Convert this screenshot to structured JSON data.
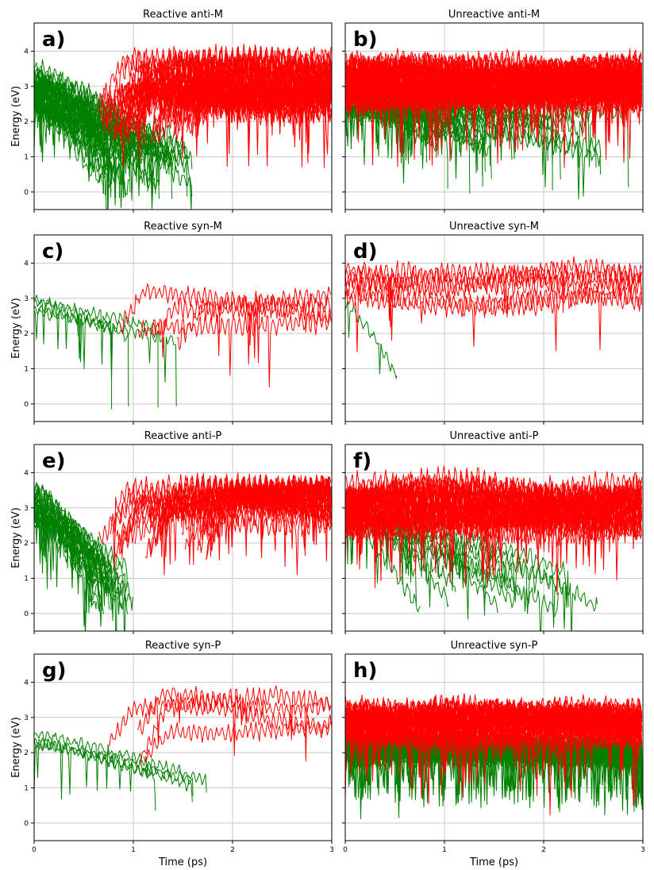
{
  "chart_data": [
    {
      "id": "a",
      "type": "line",
      "panel_label": "a)",
      "title": "Reactive anti-M",
      "ylabel": "Energy (eV)",
      "xlabel": "",
      "xlim": [
        0,
        3
      ],
      "ylim": [
        -0.5,
        4.8
      ],
      "xticks": [
        0,
        1,
        2,
        3
      ],
      "yticks": [
        0,
        1,
        2,
        3,
        4
      ],
      "series_groups": [
        {
          "name": "green",
          "color": "#008000",
          "n_traces": 40,
          "start": [
            2.3,
            3.6
          ],
          "t_switch": [
            0.6,
            1.6
          ],
          "dip_to": [
            -0.2,
            1.0
          ],
          "end": [
            0.0,
            1.6
          ],
          "noise": 0.35
        },
        {
          "name": "red",
          "color": "#ff0000",
          "n_traces": 40,
          "t_start": [
            0.65,
            1.6
          ],
          "level": [
            2.4,
            3.7
          ],
          "noise": 0.45,
          "t_end": 3.0
        }
      ]
    },
    {
      "id": "b",
      "type": "line",
      "panel_label": "b)",
      "title": "Unreactive anti-M",
      "ylabel": "",
      "xlabel": "",
      "xlim": [
        0,
        3
      ],
      "ylim": [
        -0.5,
        4.8
      ],
      "xticks": [
        0,
        1,
        2,
        3
      ],
      "yticks": [
        0,
        1,
        2,
        3,
        4
      ],
      "series_groups": [
        {
          "name": "green",
          "color": "#008000",
          "n_traces": 25,
          "start": [
            2.2,
            3.0
          ],
          "t_switch": [
            0.6,
            2.9
          ],
          "dip_to": [
            -0.2,
            1.2
          ],
          "end": [
            0.9,
            2.3
          ],
          "noise": 0.3
        },
        {
          "name": "red",
          "color": "#ff0000",
          "n_traces": 50,
          "t_start": [
            0.0,
            0.0
          ],
          "level": [
            2.6,
            3.6
          ],
          "noise": 0.4,
          "t_end": 3.0
        }
      ]
    },
    {
      "id": "c",
      "type": "line",
      "panel_label": "c)",
      "title": "Reactive syn-M",
      "ylabel": "Energy (eV)",
      "xlabel": "",
      "xlim": [
        0,
        3
      ],
      "ylim": [
        -0.5,
        4.8
      ],
      "xticks": [
        0,
        1,
        2,
        3
      ],
      "yticks": [
        0,
        1,
        2,
        3,
        4
      ],
      "series_groups": [
        {
          "name": "green",
          "color": "#008000",
          "n_traces": 4,
          "start": [
            2.5,
            3.0
          ],
          "t_switch": [
            0.6,
            2.1
          ],
          "dip_to": [
            -0.25,
            0.1
          ],
          "end": [
            1.5,
            2.2
          ],
          "noise": 0.2
        },
        {
          "name": "red",
          "color": "#ff0000",
          "n_traces": 4,
          "t_start": [
            0.6,
            2.1
          ],
          "level": [
            2.2,
            3.8
          ],
          "noise": 0.35,
          "t_end": 3.0
        }
      ]
    },
    {
      "id": "d",
      "type": "line",
      "panel_label": "d)",
      "title": "Unreactive syn-M",
      "ylabel": "",
      "xlabel": "",
      "xlim": [
        0,
        3
      ],
      "ylim": [
        -0.5,
        4.8
      ],
      "xticks": [
        0,
        1,
        2,
        3
      ],
      "yticks": [
        0,
        1,
        2,
        3,
        4
      ],
      "series_groups": [
        {
          "name": "green",
          "color": "#008000",
          "n_traces": 1,
          "start": [
            2.8,
            2.8
          ],
          "t_switch": [
            0.5,
            0.55
          ],
          "dip_to": [
            0.8,
            0.8
          ],
          "end": [
            0.8,
            0.8
          ],
          "noise": 0.2
        },
        {
          "name": "red",
          "color": "#ff0000",
          "n_traces": 6,
          "t_start": [
            0.0,
            0.0
          ],
          "level": [
            2.8,
            3.6
          ],
          "noise": 0.35,
          "t_end": 3.0
        }
      ]
    },
    {
      "id": "e",
      "type": "line",
      "panel_label": "e)",
      "title": "Reactive anti-P",
      "ylabel": "Energy (eV)",
      "xlabel": "",
      "xlim": [
        0,
        3
      ],
      "ylim": [
        -0.5,
        4.8
      ],
      "xticks": [
        0,
        1,
        2,
        3
      ],
      "yticks": [
        0,
        1,
        2,
        3,
        4
      ],
      "series_groups": [
        {
          "name": "green",
          "color": "#008000",
          "n_traces": 25,
          "start": [
            2.6,
            3.6
          ],
          "t_switch": [
            0.6,
            1.0
          ],
          "dip_to": [
            -0.15,
            0.8
          ],
          "end": [
            0.0,
            1.5
          ],
          "noise": 0.3
        },
        {
          "name": "red",
          "color": "#ff0000",
          "n_traces": 25,
          "t_start": [
            0.65,
            1.8
          ],
          "level": [
            2.7,
            3.6
          ],
          "noise": 0.4,
          "t_end": 3.0
        }
      ]
    },
    {
      "id": "f",
      "type": "line",
      "panel_label": "f)",
      "title": "Unreactive anti-P",
      "ylabel": "",
      "xlabel": "",
      "xlim": [
        0,
        3
      ],
      "ylim": [
        -0.5,
        4.8
      ],
      "xticks": [
        0,
        1,
        2,
        3
      ],
      "yticks": [
        0,
        1,
        2,
        3,
        4
      ],
      "series_groups": [
        {
          "name": "green",
          "color": "#008000",
          "n_traces": 12,
          "start": [
            2.6,
            3.5
          ],
          "t_switch": [
            0.6,
            2.6
          ],
          "dip_to": [
            -0.05,
            0.8
          ],
          "end": [
            0.0,
            1.2
          ],
          "noise": 0.3
        },
        {
          "name": "red",
          "color": "#ff0000",
          "n_traces": 30,
          "t_start": [
            0.0,
            0.0
          ],
          "level": [
            2.4,
            3.6
          ],
          "noise": 0.45,
          "t_end": 3.0
        }
      ]
    },
    {
      "id": "g",
      "type": "line",
      "panel_label": "g)",
      "title": "Reactive syn-P",
      "ylabel": "Energy (eV)",
      "xlabel": "Time (ps)",
      "xlim": [
        0,
        3
      ],
      "ylim": [
        -0.5,
        4.8
      ],
      "xticks": [
        0,
        1,
        2,
        3
      ],
      "yticks": [
        0,
        1,
        2,
        3,
        4
      ],
      "series_groups": [
        {
          "name": "green",
          "color": "#008000",
          "n_traces": 4,
          "start": [
            2.2,
            2.6
          ],
          "t_switch": [
            0.55,
            1.9
          ],
          "dip_to": [
            0.1,
            1.1
          ],
          "end": [
            1.0,
            1.5
          ],
          "noise": 0.2
        },
        {
          "name": "red",
          "color": "#ff0000",
          "n_traces": 4,
          "t_start": [
            0.7,
            1.9
          ],
          "level": [
            2.6,
            3.6
          ],
          "noise": 0.3,
          "t_end": 3.0
        }
      ]
    },
    {
      "id": "h",
      "type": "line",
      "panel_label": "h)",
      "title": "Unreactive syn-P",
      "ylabel": "",
      "xlabel": "Time (ps)",
      "xlim": [
        0,
        3
      ],
      "ylim": [
        -0.5,
        4.8
      ],
      "xticks": [
        0,
        1,
        2,
        3
      ],
      "yticks": [
        0,
        1,
        2,
        3,
        4
      ],
      "series_groups": [
        {
          "name": "green",
          "color": "#008000",
          "n_traces": 40,
          "start": [
            1.8,
            2.5
          ],
          "t_switch": [
            2.9,
            3.0
          ],
          "dip_to": [
            0.3,
            1.0
          ],
          "end": [
            1.6,
            2.4
          ],
          "noise": 0.3
        },
        {
          "name": "red",
          "color": "#ff0000",
          "n_traces": 40,
          "t_start": [
            0.0,
            0.0
          ],
          "level": [
            2.4,
            3.2
          ],
          "noise": 0.35,
          "t_end": 3.0
        }
      ]
    }
  ]
}
